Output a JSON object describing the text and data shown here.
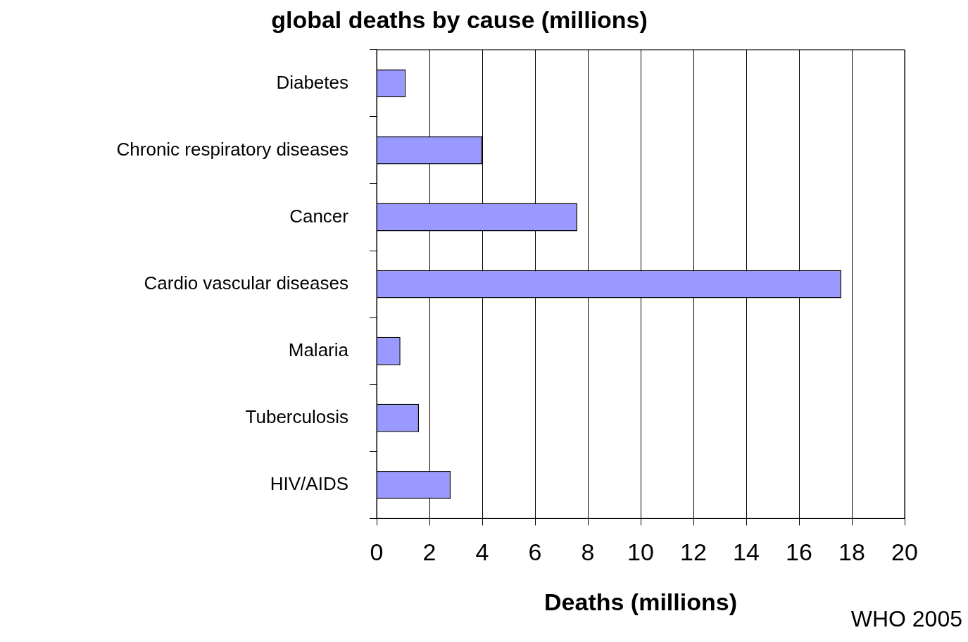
{
  "chart_data": {
    "type": "bar",
    "orientation": "horizontal",
    "title": "global deaths by cause (millions)",
    "xlabel": "Deaths (millions)",
    "categories": [
      "Diabetes",
      "Chronic respiratory diseases",
      "Cancer",
      "Cardio vascular diseases",
      "Malaria",
      "Tuberculosis",
      "HIV/AIDS"
    ],
    "values": [
      1.1,
      4.0,
      7.6,
      17.6,
      0.9,
      1.6,
      2.8
    ],
    "color": "#9999ff",
    "xlim": [
      0,
      20
    ],
    "xticks": [
      0,
      2,
      4,
      6,
      8,
      10,
      12,
      14,
      16,
      18,
      20
    ],
    "grid": "x",
    "legend": false,
    "annotations": [
      "WHO 2005"
    ]
  }
}
